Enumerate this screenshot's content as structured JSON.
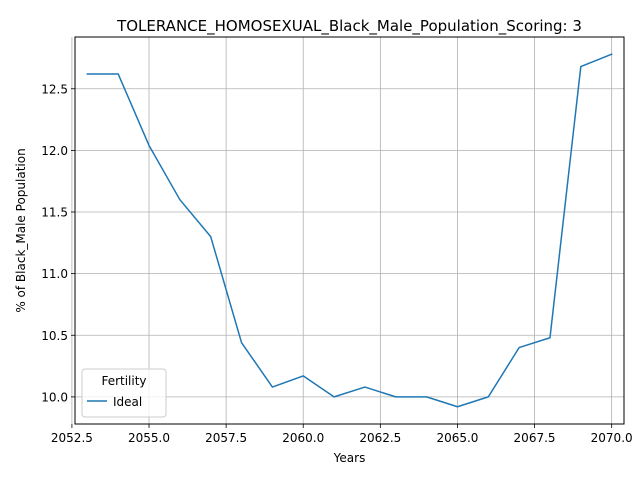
{
  "chart_data": {
    "type": "line",
    "title": "TOLERANCE_HOMOSEXUAL_Black_Male_Population_Scoring: 3",
    "xlabel": "Years",
    "ylabel": "% of Black_Male Population",
    "xlim": [
      2052.6,
      2070.4
    ],
    "ylim": [
      9.78,
      12.92
    ],
    "xticks": [
      2052.5,
      2055.0,
      2057.5,
      2060.0,
      2062.5,
      2065.0,
      2067.5,
      2070.0
    ],
    "xtick_labels": [
      "2052.5",
      "2055.0",
      "2057.5",
      "2060.0",
      "2062.5",
      "2065.0",
      "2067.5",
      "2070.0"
    ],
    "yticks": [
      10.0,
      10.5,
      11.0,
      11.5,
      12.0,
      12.5
    ],
    "ytick_labels": [
      "10.0",
      "10.5",
      "11.0",
      "11.5",
      "12.0",
      "12.5"
    ],
    "grid": true,
    "legend": {
      "title": "Fertility",
      "placement": "lower-left"
    },
    "series": [
      {
        "name": "Ideal",
        "color": "#1f77b4",
        "x": [
          2053,
          2054,
          2055,
          2056,
          2057,
          2058,
          2059,
          2060,
          2061,
          2062,
          2063,
          2064,
          2065,
          2066,
          2067,
          2068,
          2069,
          2070
        ],
        "y": [
          12.62,
          12.62,
          12.04,
          11.6,
          11.3,
          10.44,
          10.08,
          10.17,
          10.0,
          10.08,
          10.0,
          10.0,
          9.92,
          10.0,
          10.4,
          10.48,
          12.68,
          12.78
        ]
      }
    ]
  }
}
